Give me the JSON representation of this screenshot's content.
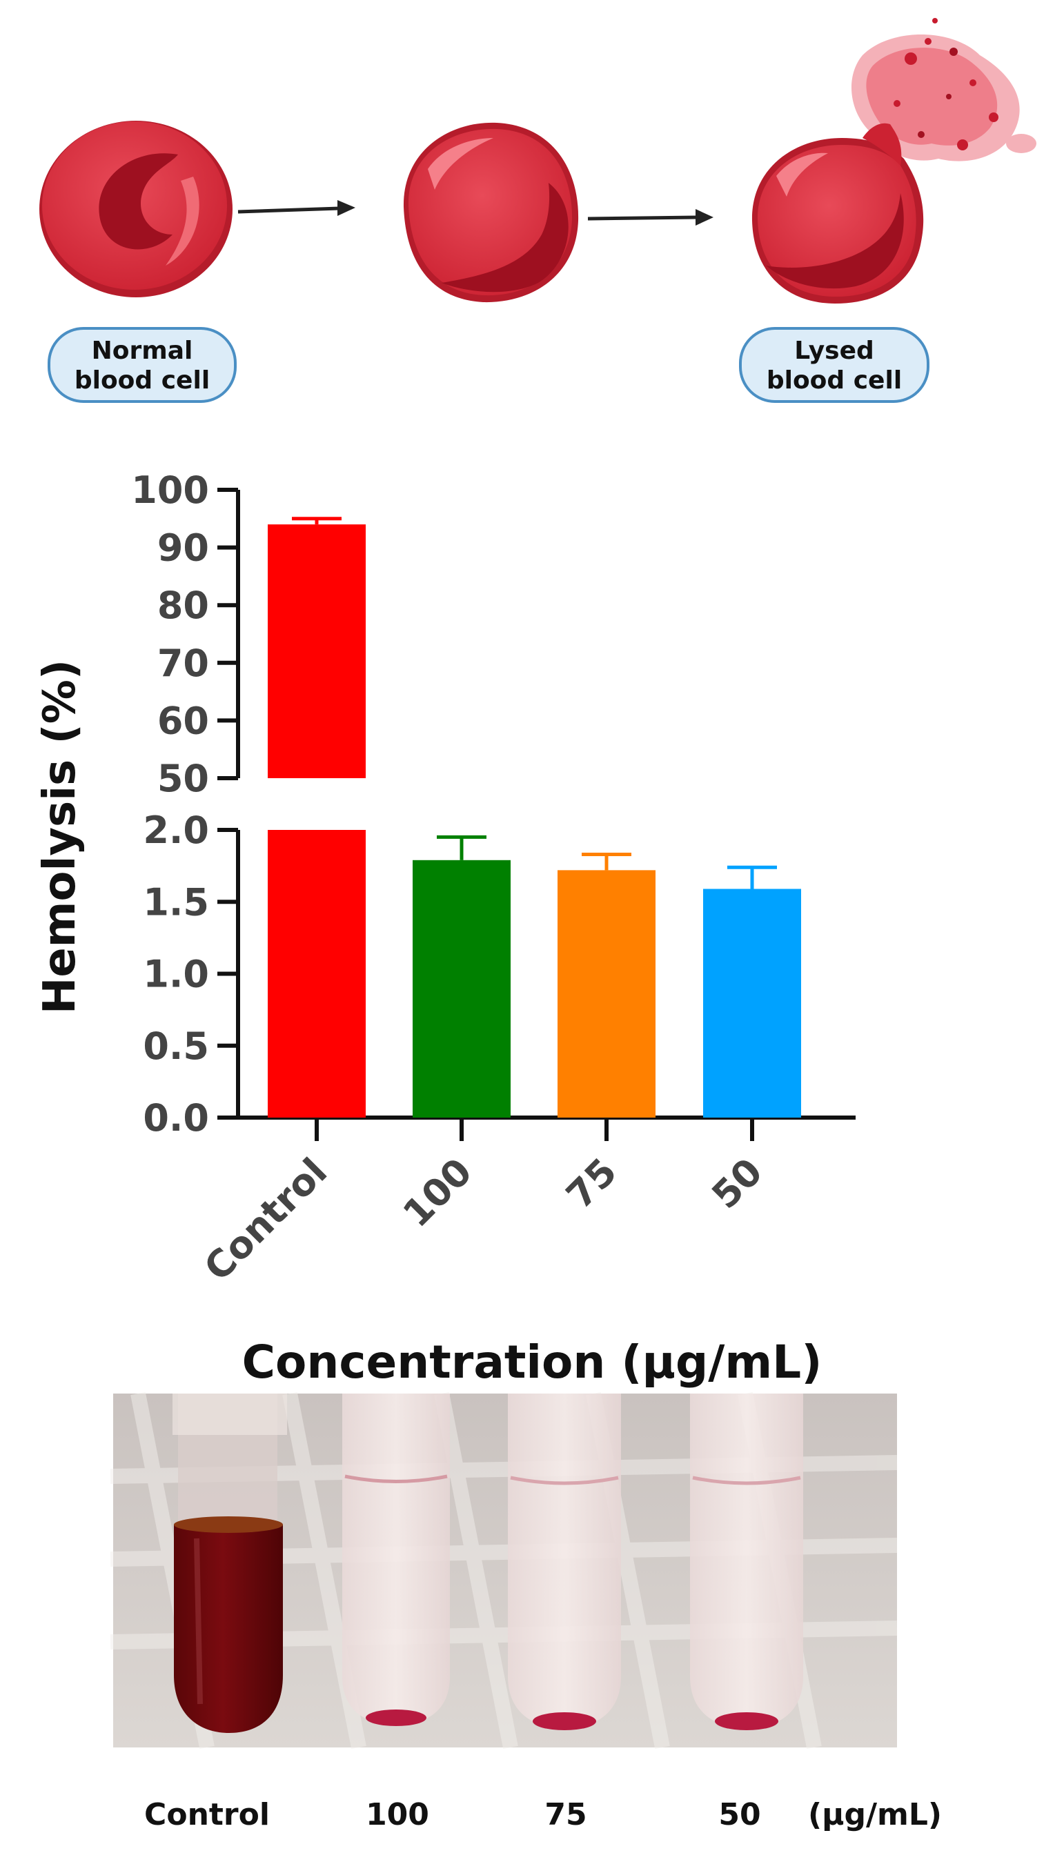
{
  "diagram": {
    "normal_label_line1": "Normal",
    "normal_label_line2": "blood cell",
    "lysed_label_line1": "Lysed",
    "lysed_label_line2": "blood cell"
  },
  "chart_data": {
    "type": "bar",
    "categories": [
      "Control",
      "100",
      "75",
      "50"
    ],
    "values": [
      94.0,
      1.79,
      1.72,
      1.59
    ],
    "errors": [
      1.0,
      0.16,
      0.11,
      0.15
    ],
    "colors": [
      "#ff0000",
      "#008000",
      "#ff8000",
      "#00a2ff"
    ],
    "ylabel": "Hemolysis (%)",
    "xlabel": "Concentration (µg/mL)",
    "y_axis_break": true,
    "lower_ylim": [
      0,
      2
    ],
    "lower_ticks": [
      "0.0",
      "0.5",
      "1.0",
      "1.5",
      "2.0"
    ],
    "upper_ylim": [
      50,
      100
    ],
    "upper_ticks": [
      "50",
      "60",
      "70",
      "80",
      "90",
      "100"
    ],
    "grid": false,
    "legend": "none"
  },
  "photo": {
    "tube_labels": [
      "Control",
      "100",
      "75",
      "50"
    ],
    "unit_label": "(µg/mL)"
  }
}
